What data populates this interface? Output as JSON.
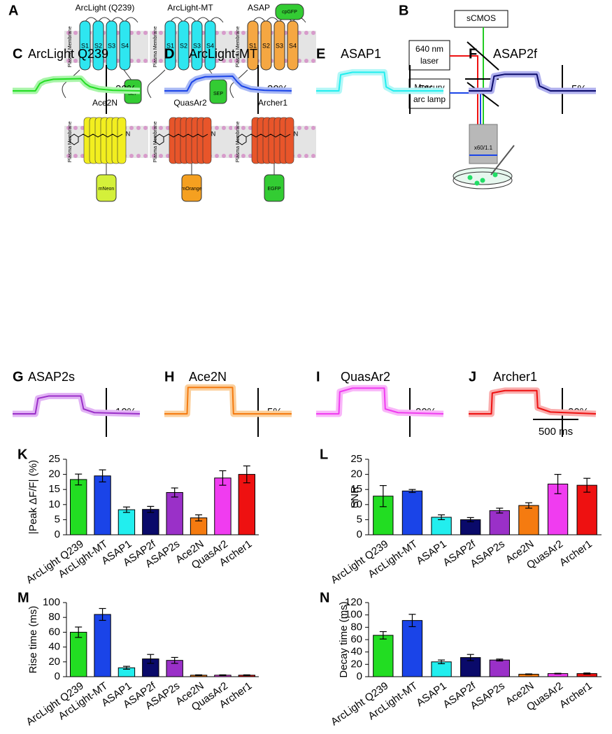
{
  "figure_a": {
    "letter": "A",
    "membrane": "Plasma Membrane",
    "constructs": [
      {
        "name": "ArcLight (Q239)",
        "segments": [
          "S1",
          "S2",
          "S3",
          "S4"
        ],
        "fp": "SEP",
        "color": "#2ee6f0",
        "fp_color": "#33cc33"
      },
      {
        "name": "ArcLight-MT",
        "segments": [
          "S1",
          "S2",
          "S3",
          "S4"
        ],
        "fp": "SEP",
        "color": "#2ee6f0",
        "fp_color": "#33cc33"
      },
      {
        "name": "ASAP",
        "segments": [
          "S1",
          "S2",
          "S3",
          "S4"
        ],
        "fp": "cpGFP",
        "color": "#f5a742",
        "fp_color": "#33cc33"
      },
      {
        "name": "Ace2N",
        "segments": [],
        "fp": "mNeon",
        "color": "#f2ee1f",
        "fp_color": "#d4f03a"
      },
      {
        "name": "QuasAr2",
        "segments": [],
        "fp": "mOrange",
        "color": "#e8552a",
        "fp_color": "#f5a020"
      },
      {
        "name": "Archer1",
        "segments": [],
        "fp": "EGFP",
        "color": "#e8552a",
        "fp_color": "#33cc33"
      }
    ]
  },
  "figure_b": {
    "letter": "B",
    "camera": "sCMOS",
    "laser": [
      "640 nm",
      "laser"
    ],
    "lamp": [
      "Mercury",
      "arc lamp"
    ],
    "objective": "x60/1.1"
  },
  "traces": {
    "xlim": [
      0,
      1400
    ],
    "time_scale": {
      "value": 500,
      "label": "500 ms"
    },
    "items": [
      {
        "letter": "C",
        "name": "ArcLight Q239",
        "color": "#22dd22",
        "light": "#a8f5a8",
        "scale": {
          "value": -20,
          "label": "-20%"
        },
        "x": [
          0,
          250,
          300,
          350,
          450,
          750,
          800,
          850,
          950,
          1100,
          1400
        ],
        "values": [
          0,
          0,
          -6,
          -8,
          -9.5,
          -10,
          -6,
          -3.5,
          -1.5,
          -0.5,
          0
        ]
      },
      {
        "letter": "D",
        "name": "ArcLight-MT",
        "color": "#1a44e8",
        "light": "#a9b9f5",
        "scale": {
          "value": -20,
          "label": "-20%"
        },
        "x": [
          0,
          250,
          300,
          350,
          450,
          750,
          800,
          850,
          950,
          1100,
          1400
        ],
        "values": [
          0,
          0,
          -7,
          -9.5,
          -11.5,
          -12,
          -7.5,
          -4,
          -1.5,
          -0.5,
          0
        ]
      },
      {
        "letter": "E",
        "name": "ASAP1",
        "color": "#22eeee",
        "light": "#b3f7f7",
        "scale": {
          "value": -5,
          "label": "-5%"
        },
        "x": [
          0,
          250,
          270,
          400,
          750,
          770,
          850,
          1400
        ],
        "values": [
          0,
          0,
          -3.3,
          -3.8,
          -3.8,
          -0.8,
          0,
          0
        ]
      },
      {
        "letter": "F",
        "name": "ASAP2f",
        "color": "#0a0a6a",
        "light": "#b0b0ee",
        "scale": {
          "value": -5,
          "label": "-5%"
        },
        "x": [
          0,
          250,
          280,
          400,
          750,
          780,
          900,
          1400
        ],
        "values": [
          0,
          0,
          -3,
          -3.4,
          -3.4,
          -1,
          0,
          0
        ]
      },
      {
        "letter": "G",
        "name": "ASAP2s",
        "color": "#9a30c8",
        "light": "#e2b3f5",
        "scale": {
          "value": -10,
          "label": "-10%"
        },
        "x": [
          0,
          250,
          280,
          400,
          750,
          780,
          900,
          1400
        ],
        "values": [
          0,
          0,
          -6.3,
          -7.3,
          -7.3,
          -2,
          -0.5,
          0
        ]
      },
      {
        "letter": "H",
        "name": "Ace2N",
        "color": "#f57b10",
        "light": "#fbcf9c",
        "scale": {
          "value": -5,
          "label": "-5%"
        },
        "x": [
          0,
          250,
          260,
          750,
          760,
          1400
        ],
        "values": [
          0,
          0,
          -5.4,
          -5.4,
          0,
          0
        ]
      },
      {
        "letter": "I",
        "name": "QuasAr2",
        "color": "#f03cf0",
        "light": "#f9b5f9",
        "scale": {
          "value": 20,
          "label": "20%"
        },
        "x": [
          0,
          250,
          260,
          400,
          750,
          760,
          900,
          1400
        ],
        "values": [
          0,
          0,
          18,
          21,
          21,
          4,
          1,
          0
        ]
      },
      {
        "letter": "J",
        "name": "Archer1",
        "color": "#ee1111",
        "light": "#f9adad",
        "scale": {
          "value": 20,
          "label": "20%"
        },
        "x": [
          0,
          250,
          260,
          400,
          750,
          760,
          900,
          1400
        ],
        "values": [
          0,
          0,
          17,
          19,
          19,
          5,
          1.5,
          0
        ]
      }
    ]
  },
  "chart_data": [
    {
      "type": "bar",
      "letter": "K",
      "ylabel": "|Peak ΔF/F| (%)",
      "categories": [
        "ArcLight Q239",
        "ArcLight-MT",
        "ASAP1",
        "ASAP2f",
        "ASAP2s",
        "Ace2N",
        "QuasAr2",
        "Archer1"
      ],
      "colors": [
        "#22dd22",
        "#1a44e8",
        "#22eeee",
        "#0a0a6a",
        "#9a30c8",
        "#f57b10",
        "#f03cf0",
        "#ee1111"
      ],
      "values": [
        18.3,
        19.5,
        8.3,
        8.4,
        14,
        5.6,
        18.8,
        20
      ],
      "errors": [
        1.8,
        2,
        0.9,
        1,
        1.5,
        1,
        2.4,
        2.8
      ],
      "ylim": [
        0,
        25
      ],
      "yticks": [
        0,
        5,
        10,
        15,
        20,
        25
      ]
    },
    {
      "type": "bar",
      "letter": "L",
      "ylabel": "SNR",
      "categories": [
        "ArcLight Q239",
        "ArcLight-MT",
        "ASAP1",
        "ASAP2f",
        "ASAP2s",
        "Ace2N",
        "QuasAr2",
        "Archer1"
      ],
      "colors": [
        "#22dd22",
        "#1a44e8",
        "#22eeee",
        "#0a0a6a",
        "#9a30c8",
        "#f57b10",
        "#f03cf0",
        "#ee1111"
      ],
      "values": [
        12.8,
        14.5,
        5.8,
        5,
        8,
        9.7,
        16.8,
        16.4
      ],
      "errors": [
        3.5,
        0.5,
        0.8,
        0.7,
        0.8,
        0.9,
        3.2,
        2.3
      ],
      "ylim": [
        0,
        25
      ],
      "yticks": [
        0,
        5,
        10,
        15,
        20,
        25
      ]
    },
    {
      "type": "bar",
      "letter": "M",
      "ylabel": "Rise time (ms)",
      "categories": [
        "ArcLight Q239",
        "ArcLight-MT",
        "ASAP1",
        "ASAP2f",
        "ASAP2s",
        "Ace2N",
        "QuasAr2",
        "Archer1"
      ],
      "colors": [
        "#22dd22",
        "#1a44e8",
        "#22eeee",
        "#0a0a6a",
        "#9a30c8",
        "#f57b10",
        "#f03cf0",
        "#ee1111"
      ],
      "values": [
        60,
        84,
        12,
        24,
        22,
        2,
        2,
        2
      ],
      "errors": [
        7,
        8,
        2,
        6,
        4,
        0.5,
        0.5,
        0.5
      ],
      "ylim": [
        0,
        100
      ],
      "yticks": [
        0,
        20,
        40,
        60,
        80,
        100
      ]
    },
    {
      "type": "bar",
      "letter": "N",
      "ylabel": "Decay time (ms)",
      "categories": [
        "ArcLight Q239",
        "ArcLight-MT",
        "ASAP1",
        "ASAP2f",
        "ASAP2s",
        "Ace2N",
        "QuasAr2",
        "Archer1"
      ],
      "colors": [
        "#22dd22",
        "#1a44e8",
        "#22eeee",
        "#0a0a6a",
        "#9a30c8",
        "#f57b10",
        "#f03cf0",
        "#ee1111"
      ],
      "values": [
        67,
        91,
        24,
        31,
        27,
        4,
        5,
        5
      ],
      "errors": [
        6,
        10,
        3,
        5,
        1.5,
        0.5,
        0.5,
        1
      ],
      "ylim": [
        0,
        120
      ],
      "yticks": [
        0,
        20,
        40,
        60,
        80,
        100,
        120
      ]
    }
  ]
}
